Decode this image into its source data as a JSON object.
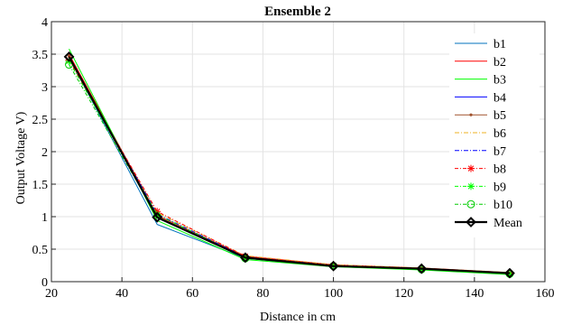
{
  "chart_data": {
    "type": "line",
    "title": "Ensemble 2",
    "xlabel": "Distance in cm",
    "ylabel": "Output Voltage V)",
    "xlim": [
      20,
      160
    ],
    "ylim": [
      0,
      4
    ],
    "xticks": [
      20,
      40,
      60,
      80,
      100,
      120,
      140,
      160
    ],
    "yticks": [
      0,
      0.5,
      1,
      1.5,
      2,
      2.5,
      3,
      3.5,
      4
    ],
    "xtick_labels": [
      "20",
      "40",
      "60",
      "80",
      "100",
      "120",
      "140",
      "160"
    ],
    "ytick_labels": [
      "0",
      "0.5",
      "1",
      "1.5",
      "2",
      "2.5",
      "3",
      "3.5",
      "4"
    ],
    "grid": true,
    "legend_position": "right",
    "x": [
      25,
      50,
      75,
      100,
      125,
      150
    ],
    "series": [
      {
        "name": "b1",
        "color": "#0072BD",
        "dash": "",
        "marker": "none",
        "width": 1,
        "values": [
          3.45,
          0.88,
          0.36,
          0.23,
          0.19,
          0.12
        ]
      },
      {
        "name": "b2",
        "color": "#FF0000",
        "dash": "",
        "marker": "none",
        "width": 1,
        "values": [
          3.5,
          1.02,
          0.39,
          0.26,
          0.21,
          0.14
        ]
      },
      {
        "name": "b3",
        "color": "#00FF00",
        "dash": "",
        "marker": "none",
        "width": 1,
        "values": [
          3.58,
          0.94,
          0.34,
          0.23,
          0.18,
          0.11
        ]
      },
      {
        "name": "b4",
        "color": "#0000FF",
        "dash": "",
        "marker": "none",
        "width": 1,
        "values": [
          3.46,
          0.98,
          0.37,
          0.24,
          0.2,
          0.13
        ]
      },
      {
        "name": "b5",
        "color": "#A0522D",
        "dash": "",
        "marker": "dot",
        "width": 1,
        "values": [
          3.47,
          1.0,
          0.38,
          0.25,
          0.2,
          0.13
        ]
      },
      {
        "name": "b6",
        "color": "#EDB120",
        "dash": "5,2,1,2",
        "marker": "none",
        "width": 1,
        "values": [
          3.43,
          1.06,
          0.4,
          0.26,
          0.21,
          0.14
        ]
      },
      {
        "name": "b7",
        "color": "#0000FF",
        "dash": "5,2,1,2",
        "marker": "none",
        "width": 1,
        "values": [
          3.44,
          1.04,
          0.38,
          0.25,
          0.2,
          0.13
        ]
      },
      {
        "name": "b8",
        "color": "#FF0000",
        "dash": "4,2,1,2",
        "marker": "star",
        "width": 1,
        "values": [
          3.41,
          1.08,
          0.39,
          0.25,
          0.2,
          0.13
        ]
      },
      {
        "name": "b9",
        "color": "#00FF00",
        "dash": "4,2,1,2",
        "marker": "star",
        "width": 1,
        "values": [
          3.39,
          1.03,
          0.37,
          0.24,
          0.19,
          0.12
        ]
      },
      {
        "name": "b10",
        "color": "#00CC00",
        "dash": "4,2,1,2",
        "marker": "circle",
        "width": 1,
        "values": [
          3.34,
          1.0,
          0.36,
          0.24,
          0.19,
          0.12
        ]
      },
      {
        "name": "Mean",
        "color": "#000000",
        "dash": "",
        "marker": "diamond",
        "width": 2.2,
        "values": [
          3.46,
          0.99,
          0.37,
          0.24,
          0.2,
          0.13
        ]
      }
    ]
  }
}
